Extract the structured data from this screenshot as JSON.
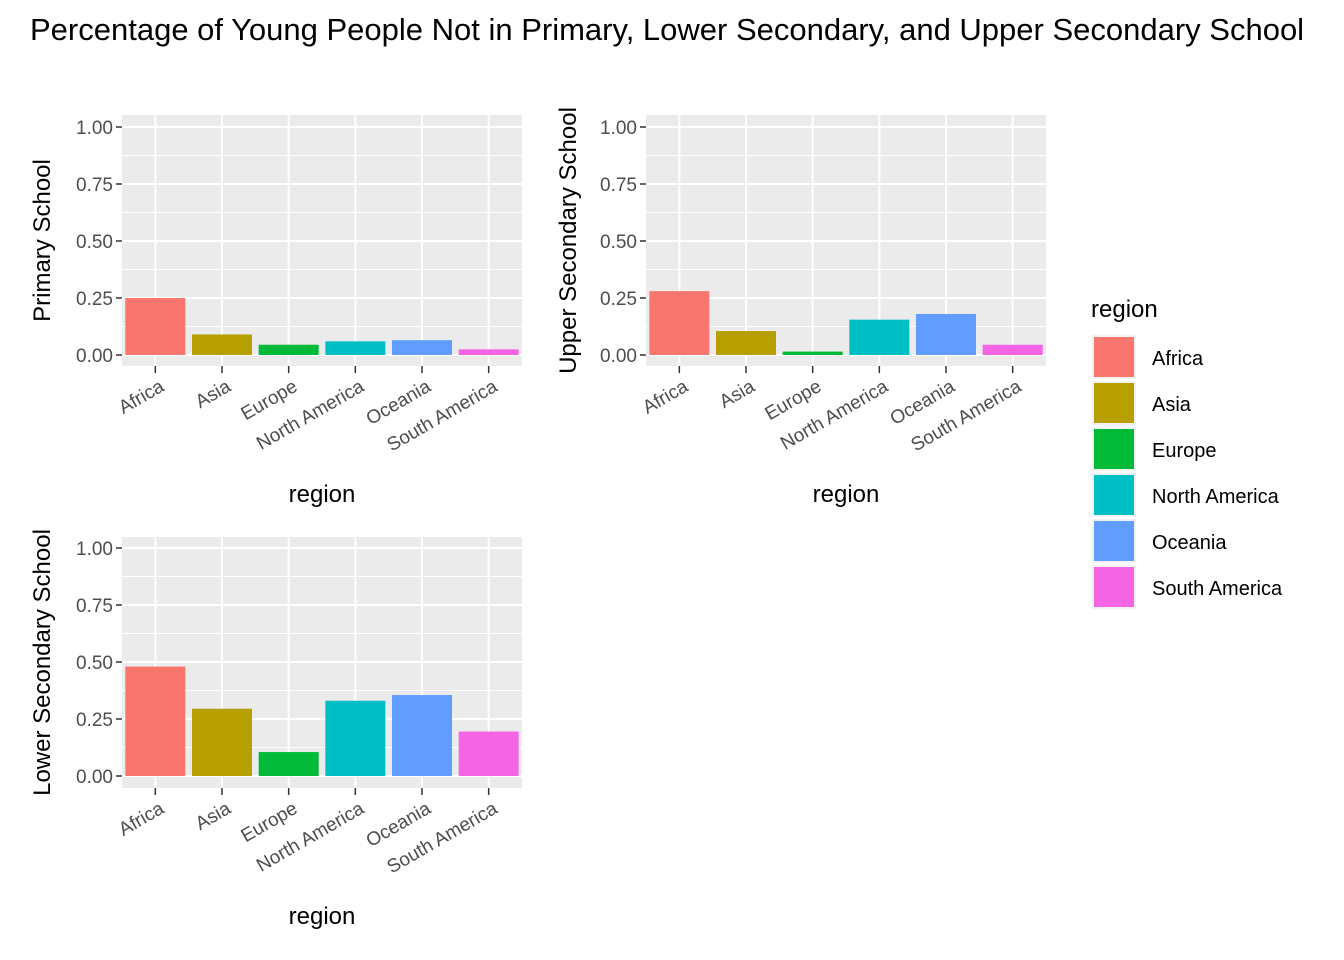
{
  "title": "Percentage of Young People Not in Primary, Lower Secondary, and Upper Secondary School",
  "legend": {
    "title": "region",
    "items": [
      {
        "label": "Africa",
        "color": "#F8766D"
      },
      {
        "label": "Asia",
        "color": "#B79F00"
      },
      {
        "label": "Europe",
        "color": "#00BA38"
      },
      {
        "label": "North America",
        "color": "#00BFC4"
      },
      {
        "label": "Oceania",
        "color": "#619CFF"
      },
      {
        "label": "South America",
        "color": "#F564E3"
      }
    ]
  },
  "chart_data": [
    {
      "type": "bar",
      "categories": [
        "Africa",
        "Asia",
        "Europe",
        "North America",
        "Oceania",
        "South America"
      ],
      "values": [
        0.25,
        0.09,
        0.045,
        0.06,
        0.065,
        0.025
      ],
      "xlabel": "region",
      "ylabel": "Primary School",
      "ylim": [
        0,
        1
      ],
      "yticks": [
        "0.00",
        "0.25",
        "0.50",
        "0.75",
        "1.00"
      ],
      "grid": true
    },
    {
      "type": "bar",
      "categories": [
        "Africa",
        "Asia",
        "Europe",
        "North America",
        "Oceania",
        "South America"
      ],
      "values": [
        0.28,
        0.105,
        0.015,
        0.155,
        0.18,
        0.045
      ],
      "xlabel": "region",
      "ylabel": "Upper Secondary School",
      "ylim": [
        0,
        1
      ],
      "yticks": [
        "0.00",
        "0.25",
        "0.50",
        "0.75",
        "1.00"
      ],
      "grid": true
    },
    {
      "type": "bar",
      "categories": [
        "Africa",
        "Asia",
        "Europe",
        "North America",
        "Oceania",
        "South America"
      ],
      "values": [
        0.48,
        0.295,
        0.105,
        0.33,
        0.355,
        0.195
      ],
      "xlabel": "region",
      "ylabel": "Lower Secondary School",
      "ylim": [
        0,
        1
      ],
      "yticks": [
        "0.00",
        "0.25",
        "0.50",
        "0.75",
        "1.00"
      ],
      "grid": true
    }
  ]
}
